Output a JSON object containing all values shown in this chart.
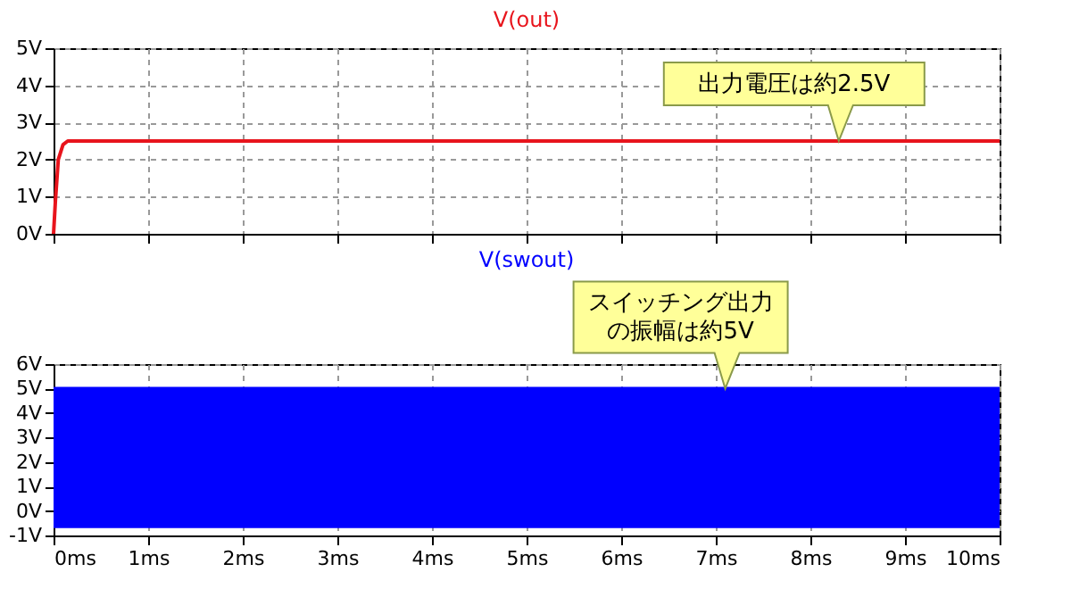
{
  "chart_data": [
    {
      "type": "line",
      "title": "V(out)",
      "x": [
        0,
        0.02,
        0.05,
        0.1,
        0.15,
        0.25,
        10
      ],
      "series": [
        {
          "color": "#e8141c",
          "values": [
            0,
            0.9,
            2.0,
            2.4,
            2.5,
            2.5,
            2.5
          ]
        }
      ],
      "xlim": [
        0,
        10
      ],
      "xticks": [
        {
          "value": 0,
          "label": null
        },
        {
          "value": 1,
          "label": null
        },
        {
          "value": 2,
          "label": null
        },
        {
          "value": 3,
          "label": null
        },
        {
          "value": 4,
          "label": null
        },
        {
          "value": 5,
          "label": null
        },
        {
          "value": 6,
          "label": null
        },
        {
          "value": 7,
          "label": null
        },
        {
          "value": 8,
          "label": null
        },
        {
          "value": 9,
          "label": null
        },
        {
          "value": 10,
          "label": null
        }
      ],
      "ylim": [
        0,
        5
      ],
      "yticks": [
        {
          "value": 0,
          "label": "0V"
        },
        {
          "value": 1,
          "label": "1V"
        },
        {
          "value": 2,
          "label": "2V"
        },
        {
          "value": 3,
          "label": "3V"
        },
        {
          "value": 4,
          "label": "4V"
        },
        {
          "value": 5,
          "label": "5V"
        }
      ],
      "tick_labels": "y",
      "grid": true,
      "line_style": "solid",
      "annotations": [
        {
          "text": "出力電圧は約2.5V",
          "x": 8.3,
          "y": 2.5
        }
      ]
    },
    {
      "type": "line",
      "title": "V(swout)",
      "x": [
        0,
        10
      ],
      "series": [
        {
          "color": "#0000ff",
          "values": [
            5,
            5
          ],
          "lower": [
            -0.7,
            -0.7
          ],
          "upper": [
            5,
            5
          ]
        }
      ],
      "xlim": [
        0,
        10
      ],
      "xticks": [
        {
          "value": 0,
          "label": "0ms"
        },
        {
          "value": 1,
          "label": "1ms"
        },
        {
          "value": 2,
          "label": "2ms"
        },
        {
          "value": 3,
          "label": "3ms"
        },
        {
          "value": 4,
          "label": "4ms"
        },
        {
          "value": 5,
          "label": "5ms"
        },
        {
          "value": 6,
          "label": "6ms"
        },
        {
          "value": 7,
          "label": "7ms"
        },
        {
          "value": 8,
          "label": "8ms"
        },
        {
          "value": 9,
          "label": "9ms"
        },
        {
          "value": 10,
          "label": "10ms"
        }
      ],
      "ylim": [
        -1,
        6
      ],
      "yticks": [
        {
          "value": -1,
          "label": "-1V"
        },
        {
          "value": 0,
          "label": "0V"
        },
        {
          "value": 1,
          "label": "1V"
        },
        {
          "value": 2,
          "label": "2V"
        },
        {
          "value": 3,
          "label": "3V"
        },
        {
          "value": 4,
          "label": "4V"
        },
        {
          "value": 5,
          "label": "5V"
        },
        {
          "value": 6,
          "label": "6V"
        }
      ],
      "grid": true,
      "line_style": "solid",
      "annotations": [
        {
          "text": "スイッチング出力の振幅は約5V",
          "x": 7.1,
          "y": 5
        }
      ]
    }
  ]
}
